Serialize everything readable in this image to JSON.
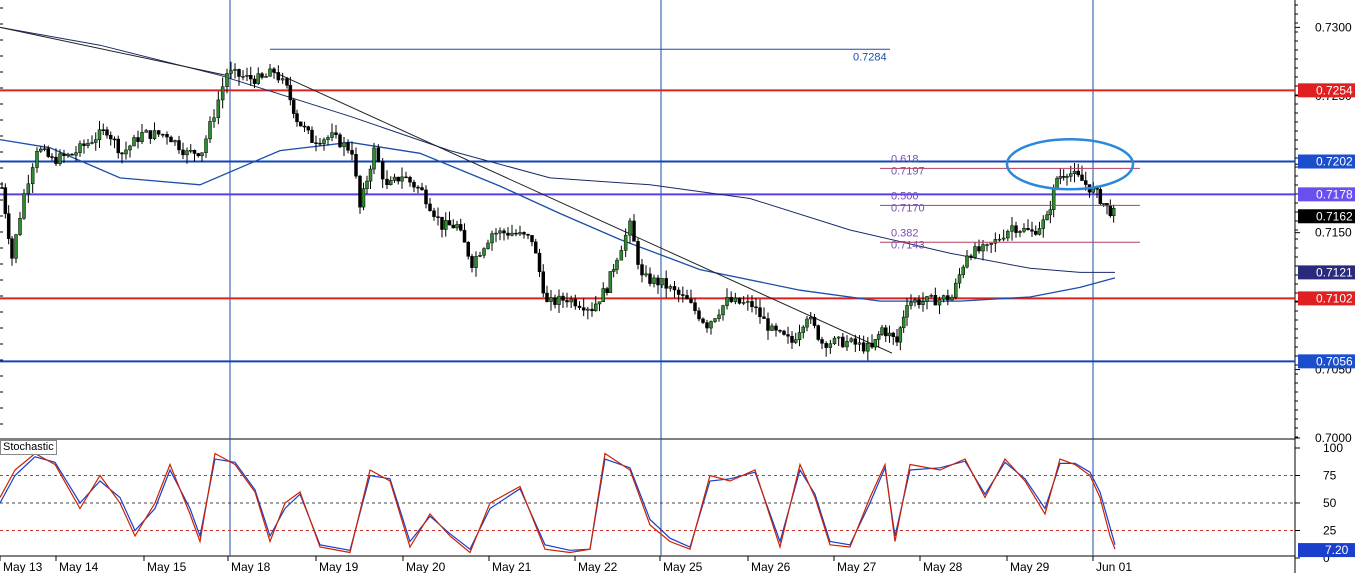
{
  "indicator": {
    "label": "Stochastic"
  },
  "colors": {
    "up_candle": "#2e8b2e",
    "down_candle": "#000000",
    "resistance_red": "#dd2222",
    "support_blue": "#1144bb",
    "mid_purple": "#5a3ee8",
    "fib_purple": "#7a4fb0",
    "ma_fast": "#1a4ea8",
    "ma_slow": "#1b2a6a",
    "stoch_k": "#cc2200",
    "stoch_d": "#1a3fcc",
    "session_line": "#1a4ea8"
  },
  "chart_data": [
    {
      "type": "line",
      "ylim": [
        0.7,
        0.732
      ],
      "y_ticks": [
        "0.7300",
        "0.7250",
        "0.7200",
        "0.7150",
        "0.7100",
        "0.7050",
        "0.7000"
      ],
      "x_labels": [
        "May 13",
        "May 14",
        "May 15",
        "May 18",
        "May 19",
        "May 20",
        "May 21",
        "May 22",
        "May 25",
        "May 26",
        "May 27",
        "May 28",
        "May 29",
        "Jun 01"
      ],
      "price_series": [
        {
          "x": 0,
          "y": 0.7183
        },
        {
          "x": 10,
          "y": 0.7132
        },
        {
          "x": 22,
          "y": 0.7178
        },
        {
          "x": 35,
          "y": 0.7212
        },
        {
          "x": 50,
          "y": 0.7203
        },
        {
          "x": 70,
          "y": 0.7207
        },
        {
          "x": 90,
          "y": 0.7218
        },
        {
          "x": 105,
          "y": 0.7225
        },
        {
          "x": 120,
          "y": 0.7208
        },
        {
          "x": 140,
          "y": 0.7222
        },
        {
          "x": 165,
          "y": 0.7222
        },
        {
          "x": 185,
          "y": 0.7208
        },
        {
          "x": 200,
          "y": 0.721
        },
        {
          "x": 212,
          "y": 0.7237
        },
        {
          "x": 225,
          "y": 0.7267
        },
        {
          "x": 245,
          "y": 0.7263
        },
        {
          "x": 260,
          "y": 0.7262
        },
        {
          "x": 272,
          "y": 0.7268
        },
        {
          "x": 285,
          "y": 0.7255
        },
        {
          "x": 295,
          "y": 0.7233
        },
        {
          "x": 310,
          "y": 0.7218
        },
        {
          "x": 330,
          "y": 0.722
        },
        {
          "x": 350,
          "y": 0.721
        },
        {
          "x": 358,
          "y": 0.7168
        },
        {
          "x": 372,
          "y": 0.721
        },
        {
          "x": 385,
          "y": 0.7183
        },
        {
          "x": 400,
          "y": 0.7192
        },
        {
          "x": 420,
          "y": 0.718
        },
        {
          "x": 440,
          "y": 0.7155
        },
        {
          "x": 455,
          "y": 0.7155
        },
        {
          "x": 470,
          "y": 0.7128
        },
        {
          "x": 490,
          "y": 0.715
        },
        {
          "x": 510,
          "y": 0.715
        },
        {
          "x": 530,
          "y": 0.7145
        },
        {
          "x": 545,
          "y": 0.7098
        },
        {
          "x": 565,
          "y": 0.7102
        },
        {
          "x": 590,
          "y": 0.7095
        },
        {
          "x": 605,
          "y": 0.711
        },
        {
          "x": 615,
          "y": 0.7133
        },
        {
          "x": 628,
          "y": 0.7155
        },
        {
          "x": 640,
          "y": 0.7117
        },
        {
          "x": 660,
          "y": 0.7113
        },
        {
          "x": 685,
          "y": 0.71
        },
        {
          "x": 705,
          "y": 0.7083
        },
        {
          "x": 725,
          "y": 0.71
        },
        {
          "x": 750,
          "y": 0.7097
        },
        {
          "x": 770,
          "y": 0.7078
        },
        {
          "x": 790,
          "y": 0.707
        },
        {
          "x": 805,
          "y": 0.709
        },
        {
          "x": 820,
          "y": 0.707
        },
        {
          "x": 845,
          "y": 0.707
        },
        {
          "x": 870,
          "y": 0.7065
        },
        {
          "x": 880,
          "y": 0.708
        },
        {
          "x": 895,
          "y": 0.707
        },
        {
          "x": 905,
          "y": 0.71
        },
        {
          "x": 925,
          "y": 0.71
        },
        {
          "x": 950,
          "y": 0.7103
        },
        {
          "x": 965,
          "y": 0.7135
        },
        {
          "x": 985,
          "y": 0.7138
        },
        {
          "x": 1010,
          "y": 0.7155
        },
        {
          "x": 1030,
          "y": 0.715
        },
        {
          "x": 1045,
          "y": 0.716
        },
        {
          "x": 1055,
          "y": 0.719
        },
        {
          "x": 1065,
          "y": 0.7195
        },
        {
          "x": 1080,
          "y": 0.7188
        },
        {
          "x": 1095,
          "y": 0.7178
        },
        {
          "x": 1105,
          "y": 0.7168
        },
        {
          "x": 1115,
          "y": 0.7162
        }
      ],
      "moving_averages": [
        {
          "x": [
            0,
            50,
            120,
            200,
            280,
            350,
            420,
            500,
            560,
            620,
            700,
            800,
            880,
            960,
            1030,
            1080,
            1115
          ],
          "y": [
            0.7218,
            0.7212,
            0.719,
            0.7185,
            0.721,
            0.7216,
            0.7208,
            0.7184,
            0.7164,
            0.7145,
            0.7123,
            0.7108,
            0.71,
            0.71,
            0.7103,
            0.711,
            0.7117
          ]
        },
        {
          "x": [
            0,
            100,
            220,
            350,
            450,
            550,
            650,
            750,
            850,
            950,
            1030,
            1080,
            1115
          ],
          "y": [
            0.73,
            0.7287,
            0.7265,
            0.7235,
            0.721,
            0.719,
            0.7185,
            0.7175,
            0.7152,
            0.7135,
            0.7124,
            0.7121,
            0.7121
          ]
        }
      ],
      "horizontal_levels": [
        {
          "value": "0.7254",
          "y": 0.7254,
          "color": "#dd2222",
          "tag_color": "#e02020"
        },
        {
          "value": "0.7202",
          "y": 0.7202,
          "color": "#1144bb",
          "tag_color": "#1a4ecc"
        },
        {
          "value": "0.7178",
          "y": 0.7178,
          "color": "#5a3ee8",
          "tag_color": "#6a4ef0"
        },
        {
          "value": "0.7162",
          "y": 0.7162,
          "color": null,
          "tag_color": "#000000"
        },
        {
          "value": "0.7121",
          "y": 0.7121,
          "color": null,
          "tag_color": "#2a2a7a"
        },
        {
          "value": "0.7102",
          "y": 0.7102,
          "color": "#dd2222",
          "tag_color": "#e02020"
        },
        {
          "value": "0.7056",
          "y": 0.7056,
          "color": "#1144bb",
          "tag_color": "#1a4ecc"
        }
      ],
      "fib_levels": [
        {
          "ratio": "0.618",
          "price": "0.7197",
          "y": 0.7197
        },
        {
          "ratio": "0.500",
          "price": "0.7170",
          "y": 0.717
        },
        {
          "ratio": "0.382",
          "price": "0.7143",
          "y": 0.7143
        }
      ],
      "top_annotation": {
        "price": "0.7284",
        "y": 0.7284
      },
      "highlight_ellipse": {
        "x": 1070,
        "y": 0.72
      }
    },
    {
      "type": "line",
      "title": "Stochastic",
      "ylim": [
        0,
        100
      ],
      "y_ticks": [
        "100",
        "75",
        "50",
        "25",
        "0"
      ],
      "current_value": "7.20",
      "levels": [
        75,
        50,
        25
      ],
      "series": [
        {
          "x": [
            0,
            15,
            35,
            55,
            80,
            100,
            120,
            135,
            155,
            170,
            190,
            200,
            215,
            235,
            255,
            270,
            285,
            300,
            320,
            350,
            370,
            390,
            410,
            430,
            450,
            470,
            490,
            520,
            545,
            570,
            590,
            605,
            630,
            650,
            670,
            690,
            710,
            730,
            755,
            780,
            800,
            815,
            830,
            850,
            870,
            885,
            895,
            910,
            940,
            965,
            985,
            1005,
            1025,
            1045,
            1060,
            1075,
            1090,
            1100,
            1110,
            1115
          ],
          "y": [
            55,
            80,
            95,
            85,
            45,
            75,
            50,
            20,
            50,
            85,
            40,
            15,
            95,
            85,
            60,
            15,
            50,
            60,
            10,
            5,
            80,
            70,
            10,
            40,
            20,
            5,
            50,
            65,
            8,
            5,
            8,
            95,
            80,
            30,
            15,
            8,
            75,
            70,
            80,
            10,
            85,
            55,
            12,
            10,
            55,
            85,
            15,
            85,
            80,
            90,
            55,
            90,
            70,
            40,
            90,
            85,
            75,
            55,
            20,
            8
          ]
        },
        {
          "x": [
            0,
            15,
            35,
            55,
            80,
            100,
            120,
            135,
            155,
            170,
            190,
            200,
            215,
            235,
            255,
            270,
            285,
            300,
            320,
            350,
            370,
            390,
            410,
            430,
            450,
            470,
            490,
            520,
            545,
            570,
            590,
            605,
            630,
            650,
            670,
            690,
            710,
            730,
            755,
            780,
            800,
            815,
            830,
            850,
            870,
            885,
            895,
            910,
            940,
            965,
            985,
            1005,
            1025,
            1045,
            1060,
            1075,
            1090,
            1100,
            1110,
            1115
          ],
          "y": [
            50,
            75,
            92,
            87,
            50,
            70,
            55,
            25,
            45,
            80,
            45,
            20,
            90,
            87,
            62,
            20,
            45,
            58,
            12,
            7,
            75,
            72,
            15,
            38,
            22,
            8,
            45,
            63,
            12,
            7,
            8,
            90,
            82,
            35,
            18,
            10,
            70,
            72,
            78,
            15,
            80,
            58,
            15,
            12,
            50,
            82,
            20,
            80,
            82,
            88,
            58,
            87,
            72,
            45,
            86,
            86,
            78,
            60,
            28,
            12
          ]
        }
      ]
    }
  ]
}
